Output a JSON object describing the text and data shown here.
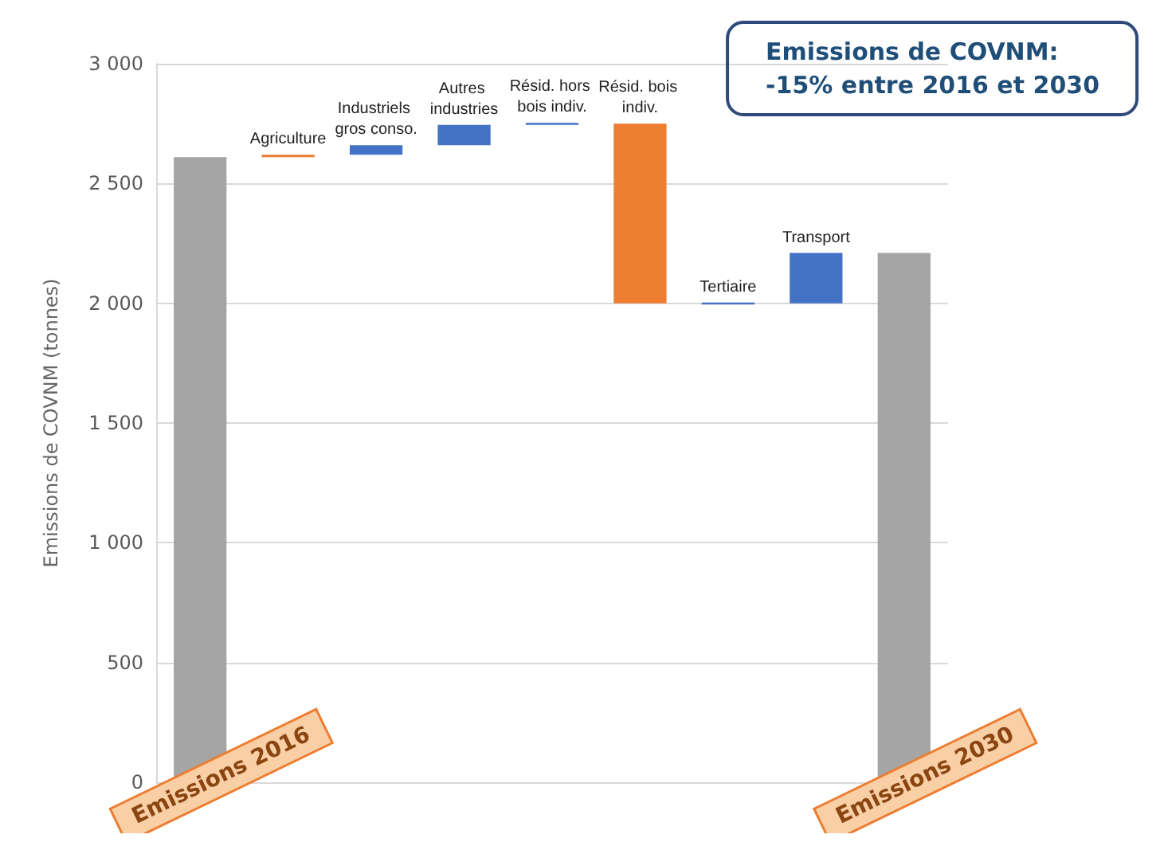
{
  "chart_data": {
    "type": "bar",
    "title": "Emissions de COVNM:\n-15% entre 2016 et 2030",
    "ylabel": "Emissions de COVNM (tonnes)",
    "categories": [
      "Emissions 2016",
      "Agriculture",
      "Industriels gros conso.",
      "Autres industries",
      "Résid. hors bois indiv.",
      "Résid. bois indiv.",
      "Tertiaire",
      "Transport",
      "Emissions 2030"
    ],
    "values": [
      2610,
      10,
      40,
      85,
      8,
      750,
      8,
      210,
      2210
    ],
    "base": [
      0,
      2610,
      2620,
      2660,
      2745,
      2000,
      1995,
      2000,
      0
    ],
    "colors": [
      "#a5a5a5",
      "#ed7d31",
      "#4472c4",
      "#4472c4",
      "#4472c4",
      "#ed7d31",
      "#4472c4",
      "#4472c4",
      "#a5a5a5"
    ],
    "ylim": [
      0,
      3000
    ],
    "yticks": [
      0,
      {
        "value": 500,
        "label": "500"
      },
      {
        "value": 1000,
        "label": "1 000"
      },
      {
        "value": 1500,
        "label": "1 500"
      },
      {
        "value": 2000,
        "label": "2 000"
      },
      {
        "value": 2500,
        "label": "2 500"
      },
      {
        "value": 3000,
        "label": "3 000"
      }
    ],
    "grid": "y"
  }
}
